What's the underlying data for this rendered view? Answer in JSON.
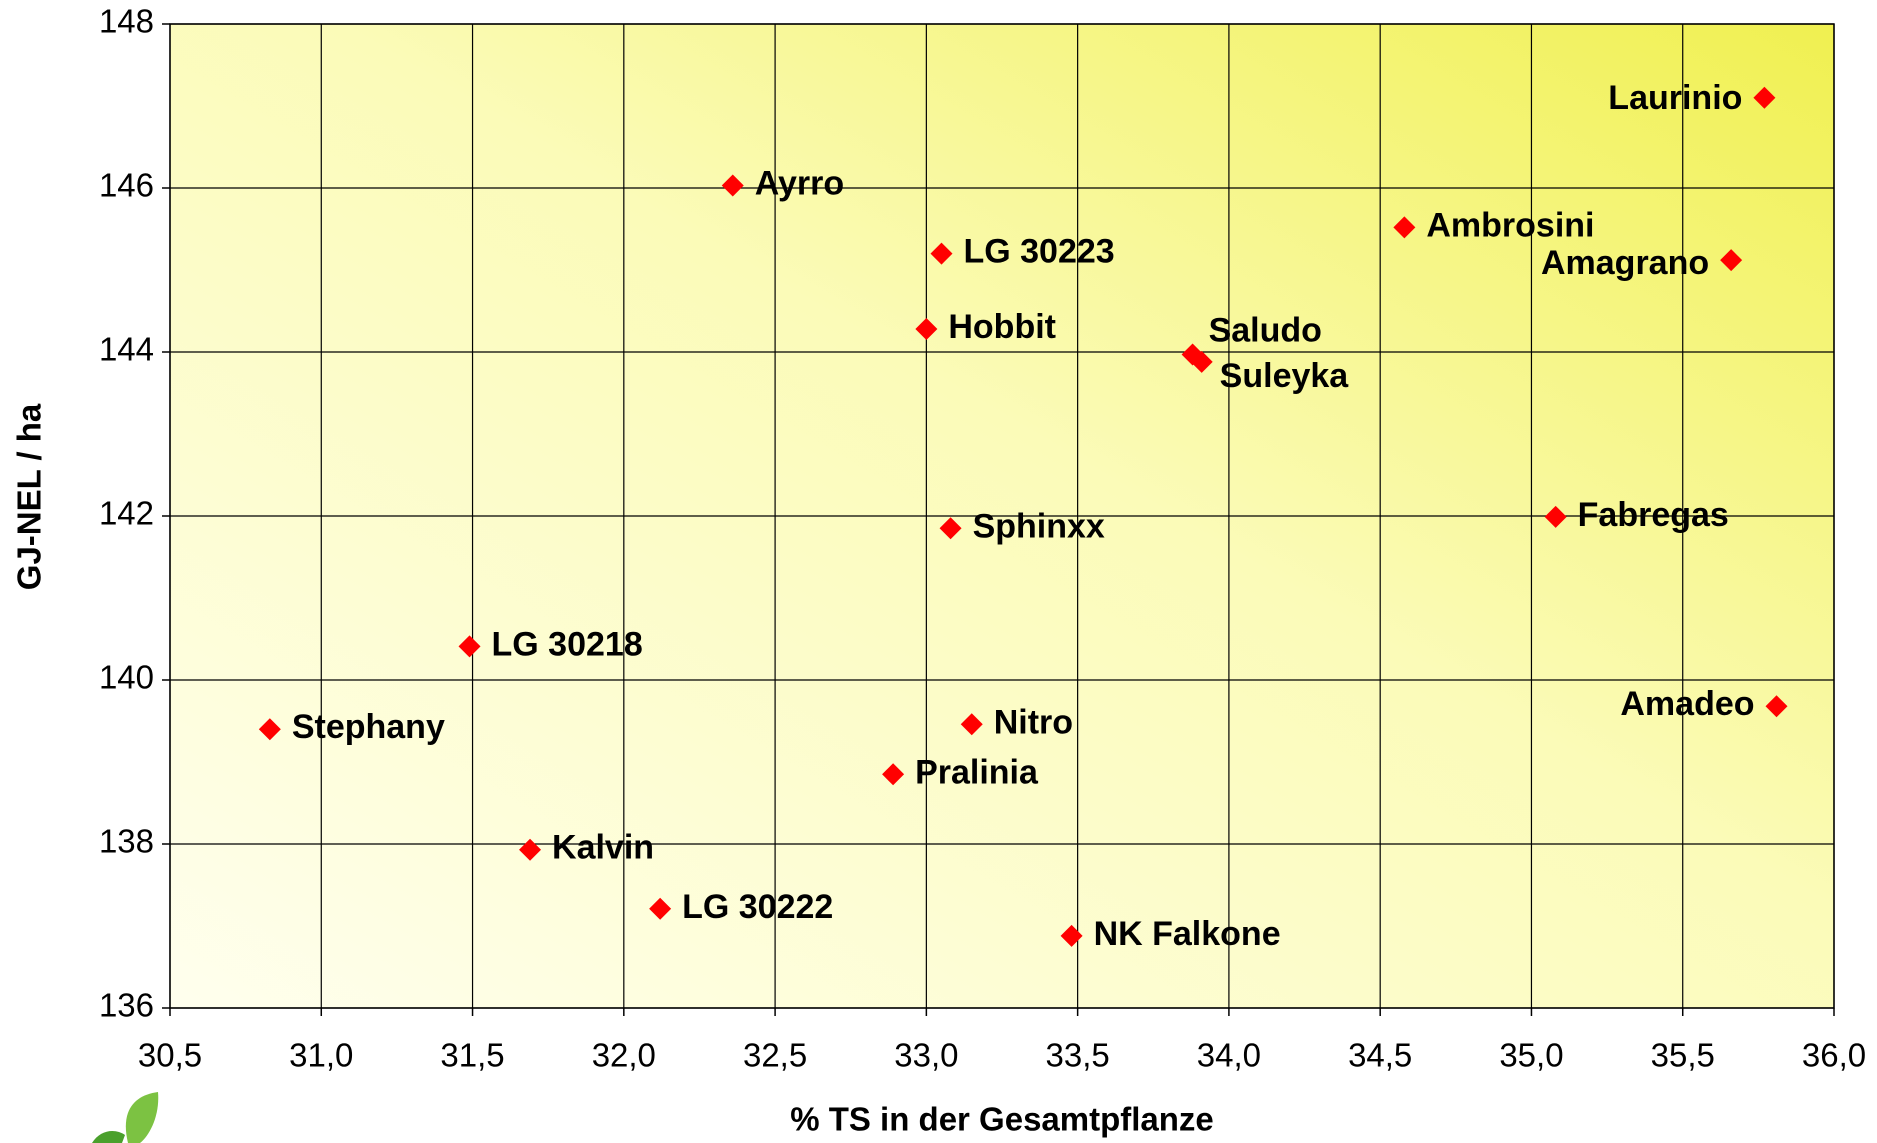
{
  "chart_data": {
    "type": "scatter",
    "x_label": "% TS in der Gesamtpflanze",
    "y_label": "GJ-NEL / ha",
    "labels": [
      "Laurinio",
      "Ayrro",
      "Ambrosini",
      "Amagrano",
      "LG 30223",
      "Hobbit",
      "Saludo",
      "Suleyka",
      "Fabregas",
      "Sphinxx",
      "LG 30218",
      "Stephany",
      "Amadeo",
      "Nitro",
      "Pralinia",
      "Kalvin",
      "LG 30222",
      "NK Falkone"
    ],
    "x": [
      35.77,
      32.36,
      34.58,
      35.66,
      33.05,
      33.0,
      33.88,
      33.91,
      35.08,
      33.08,
      31.49,
      30.83,
      35.81,
      33.15,
      32.89,
      31.69,
      32.12,
      33.48
    ],
    "y": [
      147.1,
      146.03,
      145.52,
      145.12,
      145.2,
      144.28,
      143.97,
      143.88,
      141.99,
      141.85,
      140.41,
      139.4,
      139.68,
      139.46,
      138.85,
      137.93,
      137.21,
      136.88
    ],
    "color": "#ff0000",
    "xlim": [
      30.5,
      36.0
    ],
    "xticks": [
      {
        "value": 30.5,
        "label": "30,5"
      },
      {
        "value": 31.0,
        "label": "31,0"
      },
      {
        "value": 31.5,
        "label": "31,5"
      },
      {
        "value": 32.0,
        "label": "32,0"
      },
      {
        "value": 32.5,
        "label": "32,5"
      },
      {
        "value": 33.0,
        "label": "33,0"
      },
      {
        "value": 33.5,
        "label": "33,5"
      },
      {
        "value": 34.0,
        "label": "34,0"
      },
      {
        "value": 34.5,
        "label": "34,5"
      },
      {
        "value": 35.0,
        "label": "35,0"
      },
      {
        "value": 35.5,
        "label": "35,5"
      },
      {
        "value": 36.0,
        "label": "36,0"
      }
    ],
    "ylim": [
      136,
      148
    ],
    "yticks": [
      136,
      138,
      140,
      142,
      144,
      146,
      148
    ],
    "grid": true
  }
}
